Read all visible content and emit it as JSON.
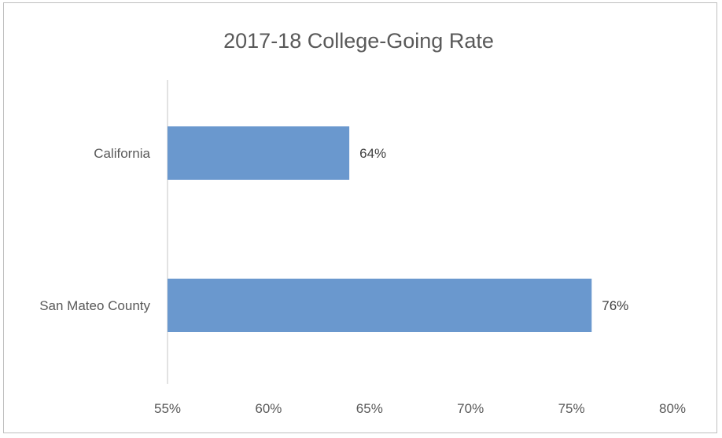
{
  "chart_data": {
    "type": "bar",
    "orientation": "horizontal",
    "title": "2017-18 College-Going Rate",
    "categories": [
      "California",
      "San Mateo County"
    ],
    "values": [
      64,
      76
    ],
    "data_labels": [
      "64%",
      "76%"
    ],
    "xlim": [
      55,
      80
    ],
    "x_ticks": [
      55,
      60,
      65,
      70,
      75,
      80
    ],
    "x_tick_labels": [
      "55%",
      "60%",
      "65%",
      "70%",
      "75%",
      "80%"
    ],
    "xlabel": "",
    "ylabel": "",
    "grid": false,
    "bar_color": "#6a98ce",
    "axis_color": "#d9d9d9",
    "text_color": "#595959"
  }
}
